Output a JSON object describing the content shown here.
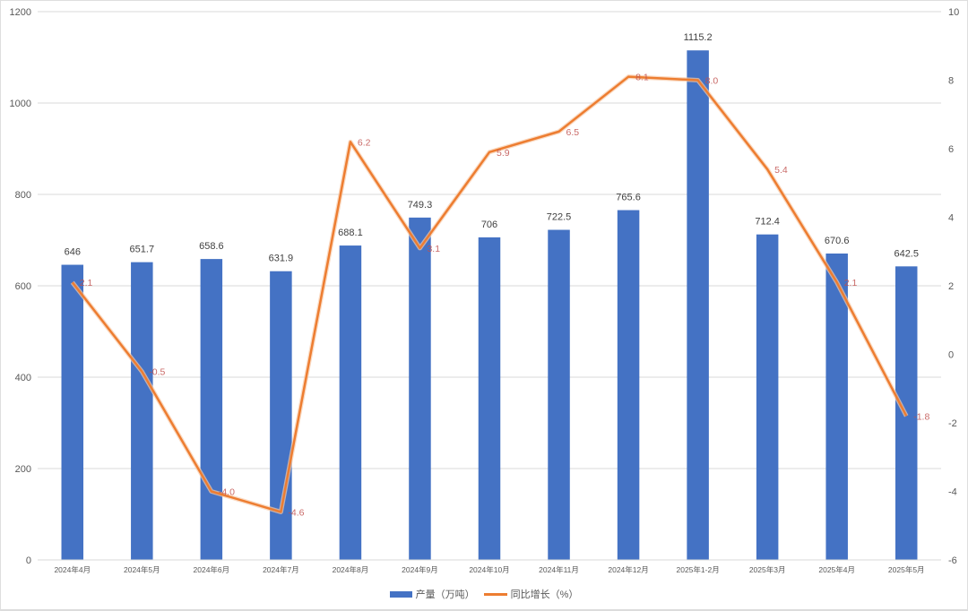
{
  "chart_data": {
    "type": "bar+line",
    "title": "",
    "categories": [
      "2024年4月",
      "2024年5月",
      "2024年6月",
      "2024年7月",
      "2024年8月",
      "2024年9月",
      "2024年10月",
      "2024年11月",
      "2024年12月",
      "2025年1-2月",
      "2025年3月",
      "2025年4月",
      "2025年5月"
    ],
    "series": [
      {
        "name": "产量（万吨）",
        "type": "bar",
        "axis": "left",
        "color": "#4472c4",
        "values": [
          646,
          651.7,
          658.6,
          631.9,
          688.1,
          749.3,
          706,
          722.5,
          765.6,
          1115.2,
          712.4,
          670.6,
          642.5
        ],
        "labels": [
          "646",
          "651.7",
          "658.6",
          "631.9",
          "688.1",
          "749.3",
          "706",
          "722.5",
          "765.6",
          "1115.2",
          "712.4",
          "670.6",
          "642.5"
        ]
      },
      {
        "name": "同比增长（%）",
        "type": "line",
        "axis": "right",
        "color": "#ed7d31",
        "values": [
          2.1,
          -0.5,
          -4.0,
          -4.6,
          6.2,
          3.1,
          5.9,
          6.5,
          8.1,
          8.0,
          5.4,
          2.1,
          -1.8
        ],
        "labels": [
          "2.1",
          "-0.5",
          "-4.0",
          "-4.6",
          "6.2",
          "3.1",
          "5.9",
          "6.5",
          "8.1",
          "8.0",
          "5.4",
          "2.1",
          "-1.8"
        ]
      }
    ],
    "left_axis": {
      "min": 0,
      "max": 1200,
      "step": 200,
      "ticks": [
        "0",
        "200",
        "400",
        "600",
        "800",
        "1000",
        "1200"
      ]
    },
    "right_axis": {
      "min": -6,
      "max": 10,
      "step": 2,
      "ticks": [
        "-6",
        "-4",
        "-2",
        "0",
        "2",
        "4",
        "6",
        "8",
        "10"
      ]
    },
    "xlabel": "",
    "ylabel": "",
    "grid": true,
    "legend_position": "bottom"
  },
  "legend": {
    "bar_label": "产量（万吨）",
    "line_label": "同比增长（%）"
  }
}
